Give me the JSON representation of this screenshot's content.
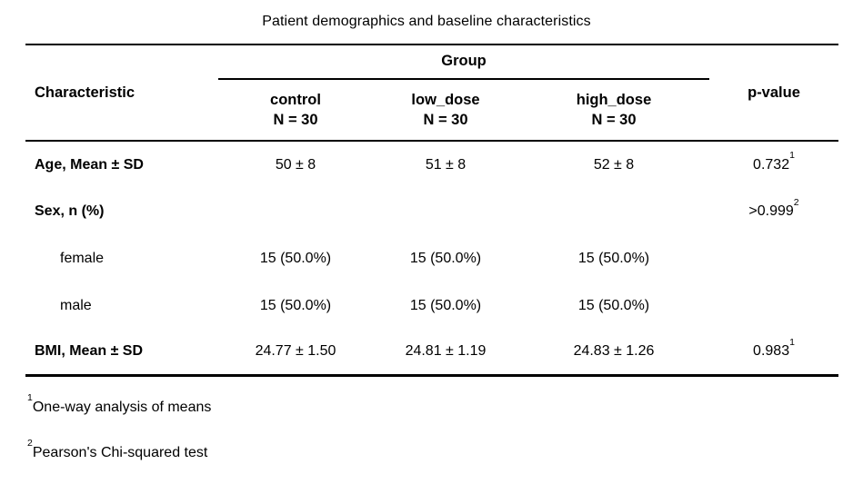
{
  "colors": {
    "background": "#ffffff",
    "text": "#000000",
    "rule": "#000000"
  },
  "table": {
    "title": "Patient demographics and baseline characteristics",
    "header": {
      "characteristic": "Characteristic",
      "group_spanner": "Group",
      "columns": [
        {
          "name": "control",
          "n": "N = 30"
        },
        {
          "name": "low_dose",
          "n": "N = 30"
        },
        {
          "name": "high_dose",
          "n": "N = 30"
        }
      ],
      "p_value": "p-value"
    },
    "rows": [
      {
        "label": "Age, Mean ± SD",
        "values": [
          "50 ± 8",
          "51 ± 8",
          "52 ± 8"
        ],
        "p_value": "0.732",
        "p_sup": "1"
      },
      {
        "label": "Sex, n (%)",
        "values": [
          "",
          "",
          ""
        ],
        "p_value": ">0.999",
        "p_sup": "2"
      },
      {
        "label": "female",
        "values": [
          "15 (50.0%)",
          "15 (50.0%)",
          "15 (50.0%)"
        ],
        "p_value": "",
        "p_sup": ""
      },
      {
        "label": "male",
        "values": [
          "15 (50.0%)",
          "15 (50.0%)",
          "15 (50.0%)"
        ],
        "p_value": "",
        "p_sup": ""
      },
      {
        "label": "BMI, Mean ± SD",
        "values": [
          "24.77 ± 1.50",
          "24.81 ± 1.19",
          "24.83 ± 1.26"
        ],
        "p_value": "0.983",
        "p_sup": "1"
      }
    ],
    "footnotes": [
      {
        "sup": "1",
        "text": "One-way analysis of means"
      },
      {
        "sup": "2",
        "text": "Pearson's Chi-squared test"
      }
    ]
  }
}
